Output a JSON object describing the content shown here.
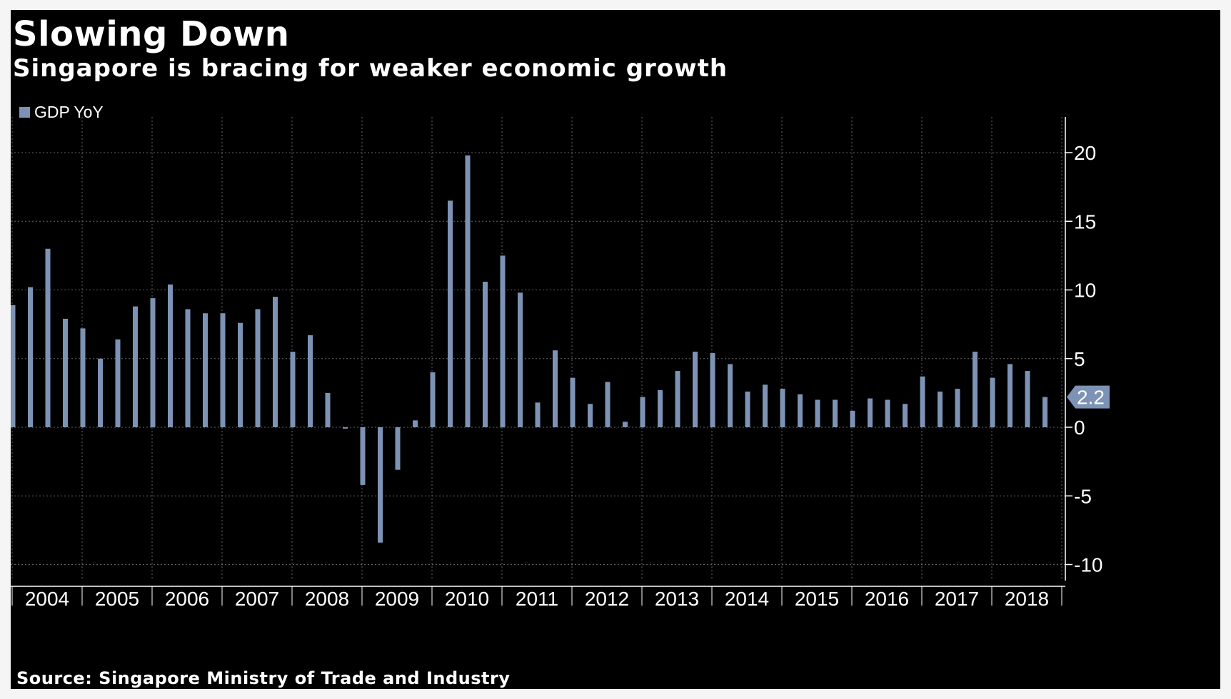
{
  "header": {
    "title": "Slowing Down",
    "subtitle": "Singapore is bracing for weaker economic growth"
  },
  "footer": {
    "source": "Source: Singapore Ministry of Trade and Industry"
  },
  "colors": {
    "background": "#000000",
    "bar": "#7d93b5",
    "text": "#ffffff",
    "grid": "#666666"
  },
  "chart_data": {
    "type": "bar",
    "title": "Slowing Down",
    "subtitle": "Singapore is bracing for weaker economic growth",
    "xlabel": "",
    "ylabel": "",
    "ylim": [
      -10.5,
      22.5
    ],
    "yticks": [
      -10,
      -5,
      0,
      5,
      10,
      15,
      20
    ],
    "ytick_labels": [
      "-10",
      "-5",
      "0",
      "5",
      "10",
      "15",
      "20"
    ],
    "grid": true,
    "legend_position": "top-left",
    "x_years": [
      "2004",
      "2005",
      "2006",
      "2007",
      "2008",
      "2009",
      "2010",
      "2011",
      "2012",
      "2013",
      "2014",
      "2015",
      "2016",
      "2017",
      "2018"
    ],
    "categories": [
      "2004 Q1",
      "2004 Q2",
      "2004 Q3",
      "2004 Q4",
      "2005 Q1",
      "2005 Q2",
      "2005 Q3",
      "2005 Q4",
      "2006 Q1",
      "2006 Q2",
      "2006 Q3",
      "2006 Q4",
      "2007 Q1",
      "2007 Q2",
      "2007 Q3",
      "2007 Q4",
      "2008 Q1",
      "2008 Q2",
      "2008 Q3",
      "2008 Q4",
      "2009 Q1",
      "2009 Q2",
      "2009 Q3",
      "2009 Q4",
      "2010 Q1",
      "2010 Q2",
      "2010 Q3",
      "2010 Q4",
      "2011 Q1",
      "2011 Q2",
      "2011 Q3",
      "2011 Q4",
      "2012 Q1",
      "2012 Q2",
      "2012 Q3",
      "2012 Q4",
      "2013 Q1",
      "2013 Q2",
      "2013 Q3",
      "2013 Q4",
      "2014 Q1",
      "2014 Q2",
      "2014 Q3",
      "2014 Q4",
      "2015 Q1",
      "2015 Q2",
      "2015 Q3",
      "2015 Q4",
      "2016 Q1",
      "2016 Q2",
      "2016 Q3",
      "2016 Q4",
      "2017 Q1",
      "2017 Q2",
      "2017 Q3",
      "2017 Q4",
      "2018 Q1",
      "2018 Q2",
      "2018 Q3",
      "2018 Q4"
    ],
    "series": [
      {
        "name": "GDP YoY",
        "values": [
          8.9,
          10.2,
          13.0,
          7.9,
          7.2,
          5.0,
          6.4,
          8.8,
          9.4,
          10.4,
          8.6,
          8.3,
          8.3,
          7.6,
          8.6,
          9.5,
          5.5,
          6.7,
          2.5,
          -0.1,
          -4.2,
          -8.4,
          -3.1,
          0.5,
          4.0,
          16.5,
          19.8,
          10.6,
          12.5,
          9.8,
          1.8,
          5.6,
          3.6,
          1.7,
          3.3,
          0.4,
          2.2,
          2.7,
          4.1,
          5.5,
          5.4,
          4.6,
          2.6,
          3.1,
          2.8,
          2.4,
          2.0,
          2.0,
          1.2,
          2.1,
          2.0,
          1.7,
          3.7,
          2.6,
          2.8,
          5.5,
          3.6,
          4.6,
          4.1,
          2.2
        ]
      }
    ],
    "last_value_label": "2.2"
  }
}
